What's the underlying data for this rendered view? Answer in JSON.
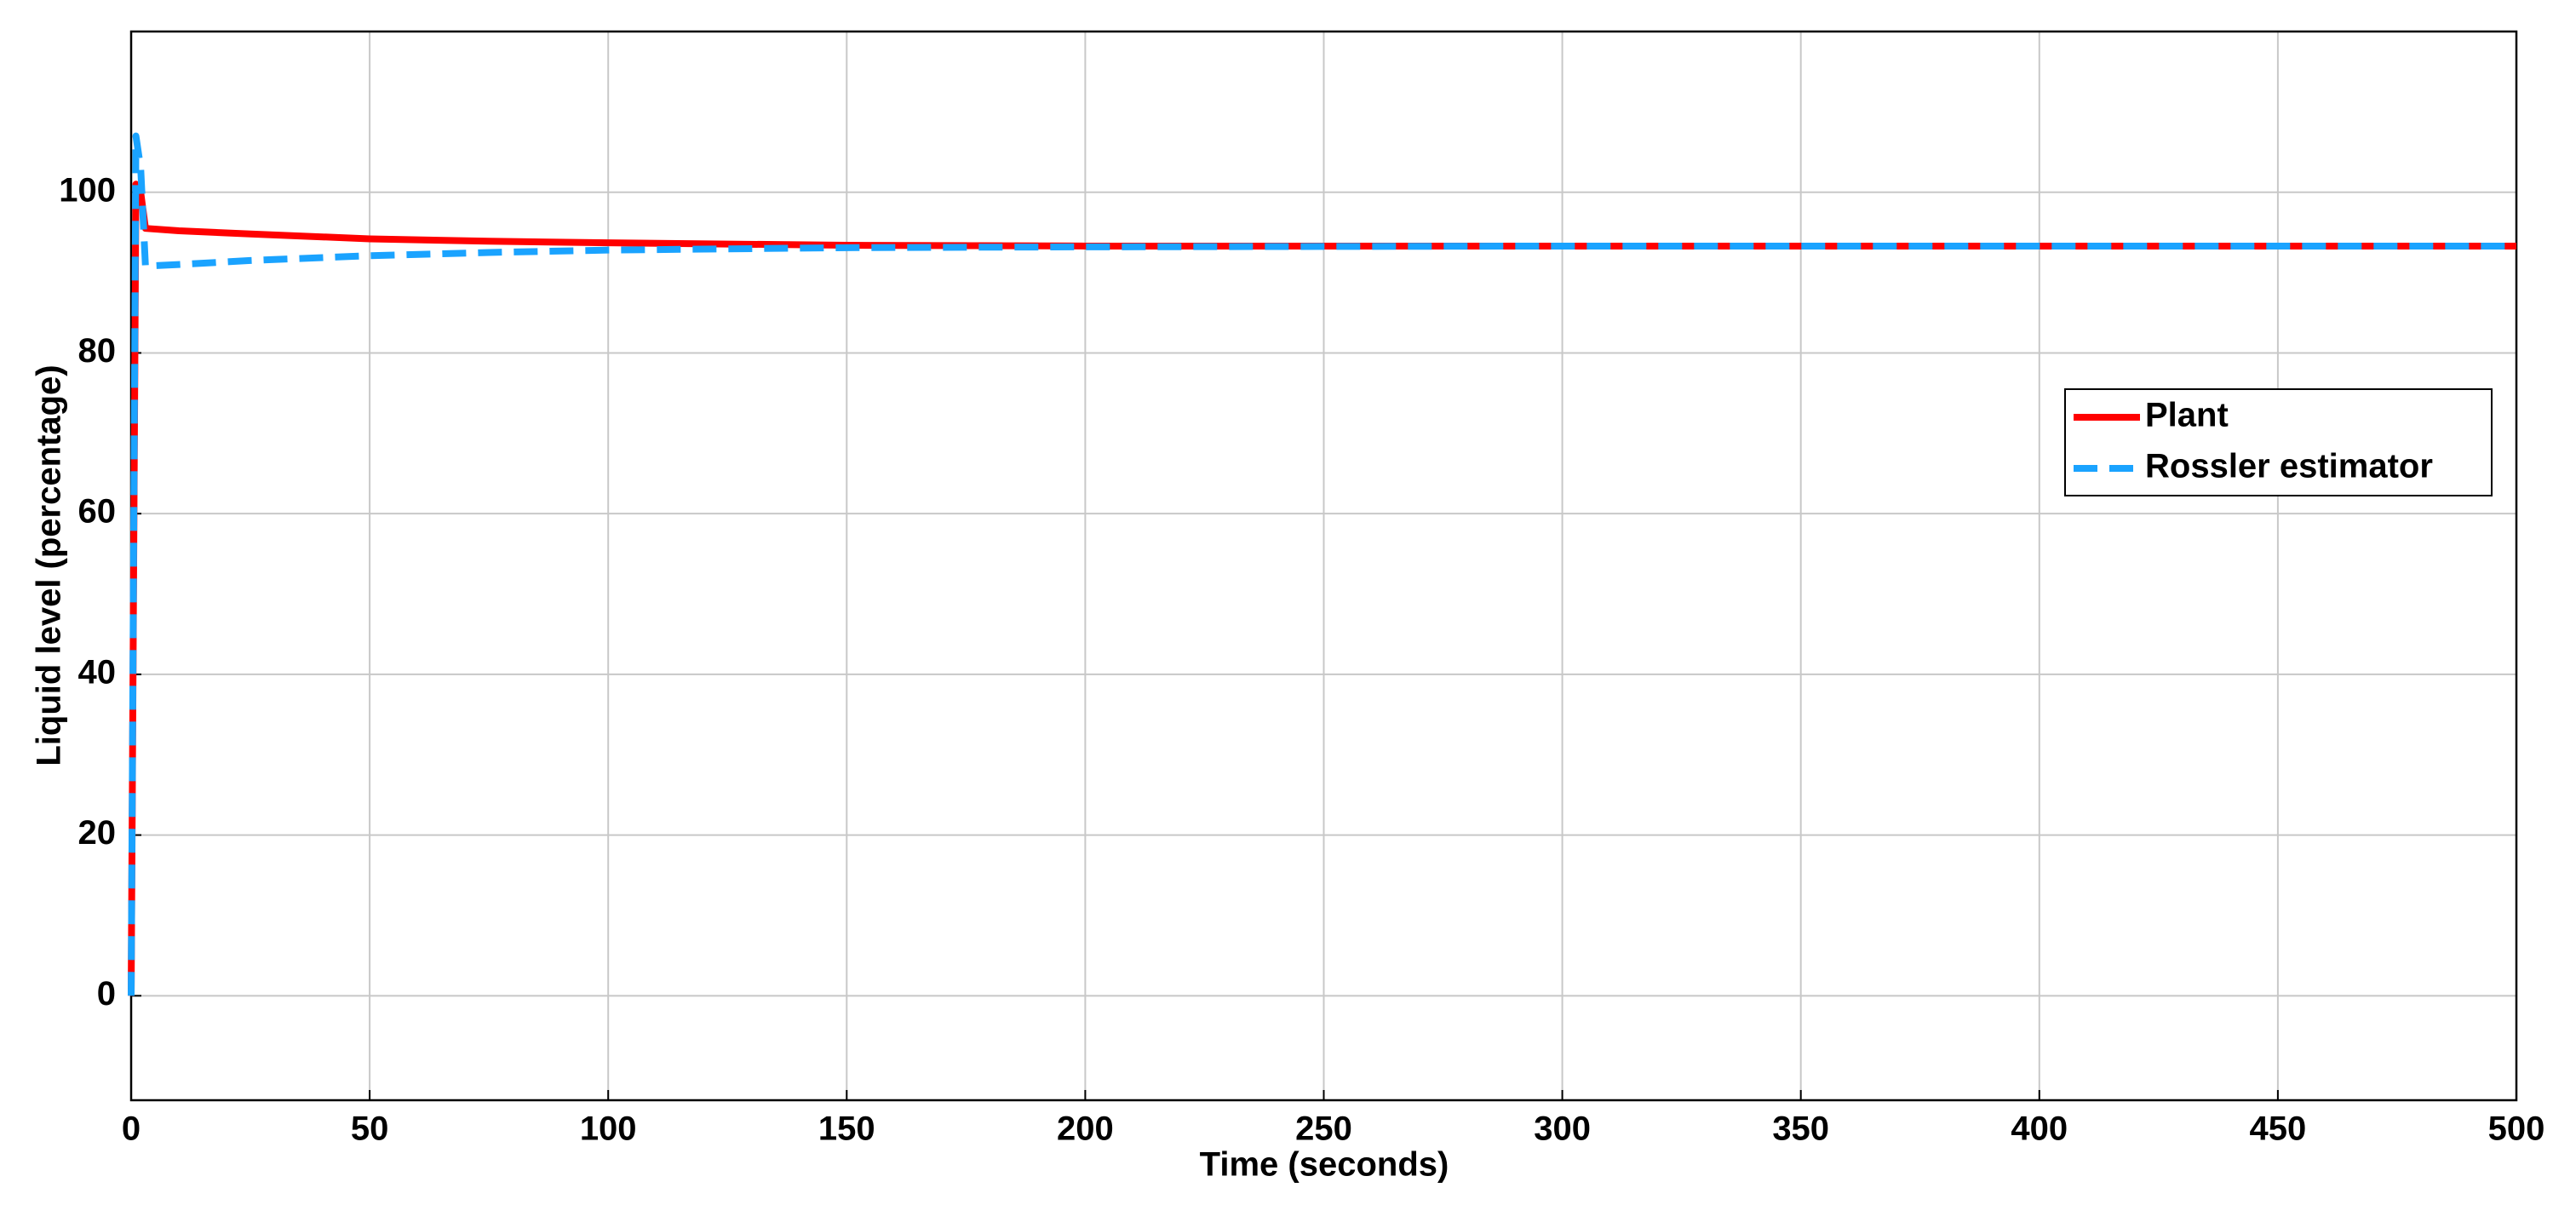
{
  "chart_data": {
    "type": "line",
    "xlabel": "Time (seconds)",
    "ylabel": "Liquid level (percentage)",
    "x": [
      0,
      1,
      2,
      3,
      10,
      25,
      50,
      75,
      100,
      150,
      200,
      300,
      500
    ],
    "series": [
      {
        "name": "Plant",
        "color": "#ff0000",
        "linestyle": "solid",
        "values": [
          0,
          101,
          100,
          95.5,
          95.2,
          94.8,
          94.2,
          93.9,
          93.7,
          93.4,
          93.3,
          93.3,
          93.3
        ]
      },
      {
        "name": "Rossler estimator",
        "color": "#1aa3ff",
        "linestyle": "dashed",
        "values": [
          0,
          107,
          103,
          90.8,
          91,
          91.5,
          92.1,
          92.5,
          92.8,
          93.1,
          93.2,
          93.3,
          93.3
        ]
      }
    ],
    "xlim": [
      0,
      500
    ],
    "xticks": [
      0,
      50,
      100,
      150,
      200,
      250,
      300,
      350,
      400,
      450,
      500
    ],
    "ylim": [
      -13,
      120
    ],
    "yticks": [
      0,
      20,
      40,
      60,
      80,
      100
    ],
    "grid": true,
    "legend": "right"
  }
}
